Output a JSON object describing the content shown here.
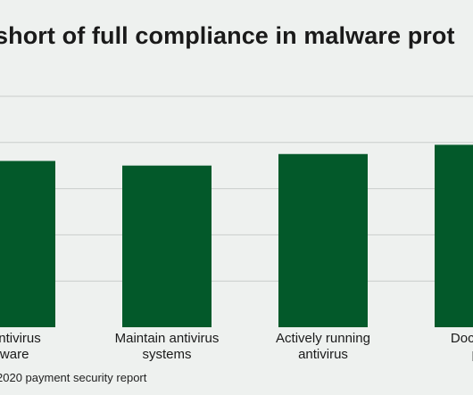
{
  "chart_data": {
    "type": "bar",
    "title": "short of full compliance in malware prot",
    "categories": [
      [
        "y antivirus",
        "ftware"
      ],
      [
        "Maintain antivirus",
        "systems"
      ],
      [
        "Actively running",
        "antivirus"
      ],
      [
        "Documen",
        "po"
      ]
    ],
    "values": [
      72,
      70,
      75,
      79
    ],
    "ylim": [
      0,
      100
    ],
    "grid": true,
    "xlabel": "",
    "ylabel": "",
    "bar_color": "#03592a",
    "grid_color": "#c9cdcb"
  },
  "source": "2020 payment security report"
}
